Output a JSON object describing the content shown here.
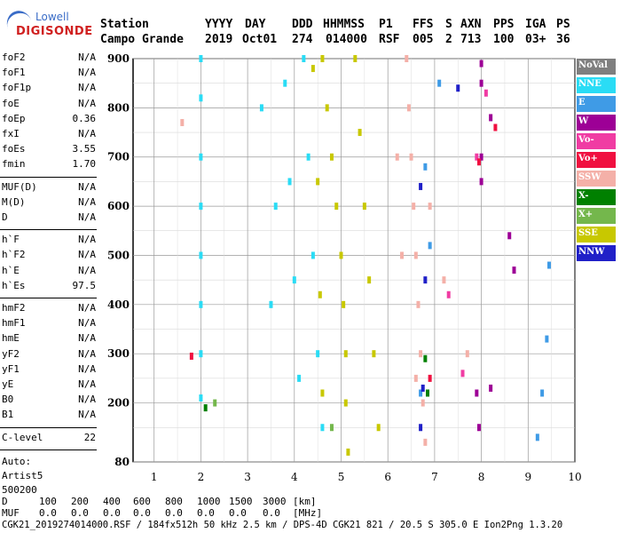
{
  "logo": {
    "top": "Lowell",
    "bottom": "DIGISONDE"
  },
  "header": {
    "labels": [
      "Station",
      "YYYY",
      "DAY",
      "DDD",
      "HHMMSS",
      "P1",
      "FFS",
      "S",
      "AXN",
      "PPS",
      "IGA",
      "PS"
    ],
    "values": [
      "Campo Grande",
      "2019",
      "Oct01",
      "274",
      "014000",
      "RSF",
      "005",
      "2",
      "713",
      "100",
      "03+",
      "36"
    ]
  },
  "params": {
    "group1": [
      {
        "label": "foF2",
        "value": "N/A"
      },
      {
        "label": "foF1",
        "value": "N/A"
      },
      {
        "label": "foF1p",
        "value": "N/A"
      },
      {
        "label": "foE",
        "value": "N/A"
      },
      {
        "label": "foEp",
        "value": "0.36"
      },
      {
        "label": "fxI",
        "value": "N/A"
      },
      {
        "label": "foEs",
        "value": "3.55"
      },
      {
        "label": "fmin",
        "value": "1.70"
      }
    ],
    "group2": [
      {
        "label": "MUF(D)",
        "value": "N/A"
      },
      {
        "label": "M(D)",
        "value": "N/A"
      },
      {
        "label": "D",
        "value": "N/A"
      }
    ],
    "group3": [
      {
        "label": "h`F",
        "value": "N/A"
      },
      {
        "label": "h`F2",
        "value": "N/A"
      },
      {
        "label": "h`E",
        "value": "N/A"
      },
      {
        "label": "h`Es",
        "value": "97.5"
      }
    ],
    "group4": [
      {
        "label": "hmF2",
        "value": "N/A"
      },
      {
        "label": "hmF1",
        "value": "N/A"
      },
      {
        "label": "hmE",
        "value": "N/A"
      },
      {
        "label": "yF2",
        "value": "N/A"
      },
      {
        "label": "yF1",
        "value": "N/A"
      },
      {
        "label": "yE",
        "value": "N/A"
      },
      {
        "label": "B0",
        "value": "N/A"
      },
      {
        "label": "B1",
        "value": "N/A"
      }
    ],
    "clevel": {
      "label": "C-level",
      "value": "22"
    },
    "auto": [
      "Auto:",
      "Artist5",
      "500200"
    ]
  },
  "legend": [
    {
      "label": "NoVal",
      "color": "#7f7f7f"
    },
    {
      "label": "NNE",
      "color": "#2adcf5"
    },
    {
      "label": "E",
      "color": "#3f9be6"
    },
    {
      "label": "W",
      "color": "#9d0096"
    },
    {
      "label": "Vo-",
      "color": "#f03ca3"
    },
    {
      "label": "Vo+",
      "color": "#f01040"
    },
    {
      "label": "SSW",
      "color": "#f4b0a8"
    },
    {
      "label": "X-",
      "color": "#008000"
    },
    {
      "label": "X+",
      "color": "#74b74c"
    },
    {
      "label": "SSE",
      "color": "#c8c800"
    },
    {
      "label": "NNW",
      "color": "#2020c8"
    }
  ],
  "chart_data": {
    "type": "scatter",
    "x_ticks": [
      "1",
      "2",
      "3",
      "4",
      "5",
      "6",
      "7",
      "8",
      "9",
      "10"
    ],
    "y_ticks": [
      "900",
      "800",
      "700",
      "600",
      "500",
      "400",
      "300",
      "200",
      "80"
    ],
    "xlim": [
      1,
      10
    ],
    "ylim": [
      80,
      900
    ],
    "traces_note": "",
    "traces": [
      {
        "name": "NNE",
        "points": [
          [
            2.0,
            900
          ],
          [
            2.0,
            820
          ],
          [
            2.0,
            700
          ],
          [
            2.0,
            600
          ],
          [
            2.0,
            500
          ],
          [
            2.0,
            400
          ],
          [
            2.0,
            300
          ],
          [
            2.0,
            210
          ],
          [
            4.2,
            900
          ],
          [
            4.3,
            700
          ],
          [
            4.4,
            500
          ],
          [
            4.5,
            300
          ],
          [
            4.6,
            150
          ],
          [
            3.8,
            850
          ],
          [
            3.9,
            650
          ],
          [
            4.0,
            450
          ],
          [
            4.1,
            250
          ],
          [
            3.6,
            600
          ],
          [
            3.5,
            400
          ],
          [
            3.3,
            800
          ]
        ]
      },
      {
        "name": "SSE",
        "points": [
          [
            4.6,
            900
          ],
          [
            4.7,
            800
          ],
          [
            4.8,
            700
          ],
          [
            4.9,
            600
          ],
          [
            5.0,
            500
          ],
          [
            5.05,
            400
          ],
          [
            5.1,
            300
          ],
          [
            5.1,
            200
          ],
          [
            5.15,
            100
          ],
          [
            5.3,
            900
          ],
          [
            5.4,
            750
          ],
          [
            5.5,
            600
          ],
          [
            5.6,
            450
          ],
          [
            5.7,
            300
          ],
          [
            5.8,
            150
          ],
          [
            4.4,
            880
          ],
          [
            4.5,
            650
          ],
          [
            4.55,
            420
          ],
          [
            4.6,
            220
          ]
        ]
      },
      {
        "name": "SSW",
        "points": [
          [
            6.4,
            900
          ],
          [
            6.45,
            800
          ],
          [
            6.5,
            700
          ],
          [
            6.55,
            600
          ],
          [
            6.6,
            500
          ],
          [
            6.65,
            400
          ],
          [
            6.7,
            300
          ],
          [
            6.75,
            200
          ],
          [
            6.8,
            120
          ],
          [
            6.2,
            700
          ],
          [
            6.3,
            500
          ],
          [
            6.9,
            600
          ],
          [
            6.6,
            250
          ],
          [
            7.2,
            450
          ],
          [
            7.7,
            300
          ],
          [
            1.6,
            770
          ]
        ]
      },
      {
        "name": "W",
        "points": [
          [
            8.0,
            890
          ],
          [
            8.0,
            850
          ],
          [
            8.0,
            700
          ],
          [
            8.0,
            650
          ],
          [
            8.2,
            780
          ],
          [
            8.2,
            230
          ],
          [
            7.95,
            150
          ],
          [
            8.6,
            540
          ],
          [
            8.7,
            470
          ],
          [
            7.9,
            220
          ]
        ]
      },
      {
        "name": "Vo-",
        "points": [
          [
            7.9,
            700
          ],
          [
            8.1,
            830
          ],
          [
            7.3,
            420
          ],
          [
            7.6,
            260
          ]
        ]
      },
      {
        "name": "Vo+",
        "points": [
          [
            7.95,
            690
          ],
          [
            8.3,
            760
          ],
          [
            6.9,
            250
          ],
          [
            1.8,
            295
          ]
        ]
      },
      {
        "name": "E",
        "points": [
          [
            7.1,
            850
          ],
          [
            6.8,
            680
          ],
          [
            6.9,
            520
          ],
          [
            9.4,
            330
          ],
          [
            9.3,
            220
          ],
          [
            9.2,
            130
          ],
          [
            9.45,
            480
          ],
          [
            6.7,
            220
          ]
        ]
      },
      {
        "name": "NNW",
        "points": [
          [
            6.7,
            640
          ],
          [
            6.8,
            450
          ],
          [
            6.75,
            230
          ],
          [
            7.5,
            840
          ],
          [
            6.7,
            150
          ]
        ]
      },
      {
        "name": "X-",
        "points": [
          [
            6.8,
            290
          ],
          [
            6.85,
            220
          ],
          [
            2.1,
            190
          ]
        ]
      },
      {
        "name": "X+",
        "points": [
          [
            4.8,
            150
          ],
          [
            2.3,
            200
          ]
        ]
      }
    ]
  },
  "footer": {
    "d_label": "D",
    "d_values": [
      "100",
      "200",
      "400",
      "600",
      "800",
      "1000",
      "1500",
      "3000",
      "[km]"
    ],
    "muf_label": "MUF",
    "muf_values": [
      "0.0",
      "0.0",
      "0.0",
      "0.0",
      "0.0",
      "0.0",
      "0.0",
      "0.0",
      "[MHz]"
    ],
    "line3": "CGK21_2019274014000.RSF / 184fx512h 50 kHz 2.5 km / DPS-4D CGK21 821 / 20.5 S 305.0 E Ion2Png 1.3.20"
  }
}
